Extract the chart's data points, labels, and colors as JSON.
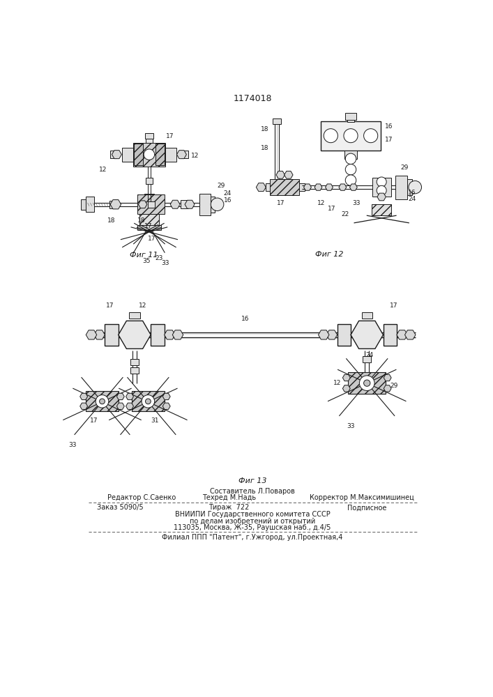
{
  "title_number": "1174018",
  "bg_color": "#ffffff",
  "text_color": "#1a1a1a",
  "line_color": "#1a1a1a",
  "fig11_label": "Фиг 11",
  "fig12_label": "Фиг 12",
  "fig13_label": "Фиг 13",
  "footer_center_top": "Составитель Л.Поваров",
  "footer_line1_left": "Редактор С.Саенко",
  "footer_line1_center": "Техред М.Надь",
  "footer_line1_right": "Корректор М.Максимишинец",
  "footer_line2_left": "Заказ 5090/5",
  "footer_line2_center": "Тираж  722",
  "footer_line2_right": "Подписное",
  "footer_line3": "ВНИИПИ Государственного комитета СССР",
  "footer_line4": "по делам изобретений и открытий",
  "footer_line5": "113035, Москва, Ж-35, Раушская наб., д.4/5",
  "footer_line6": "Филиал ППП \"Патент\", г.Ужгород, ул.Проектная,4"
}
